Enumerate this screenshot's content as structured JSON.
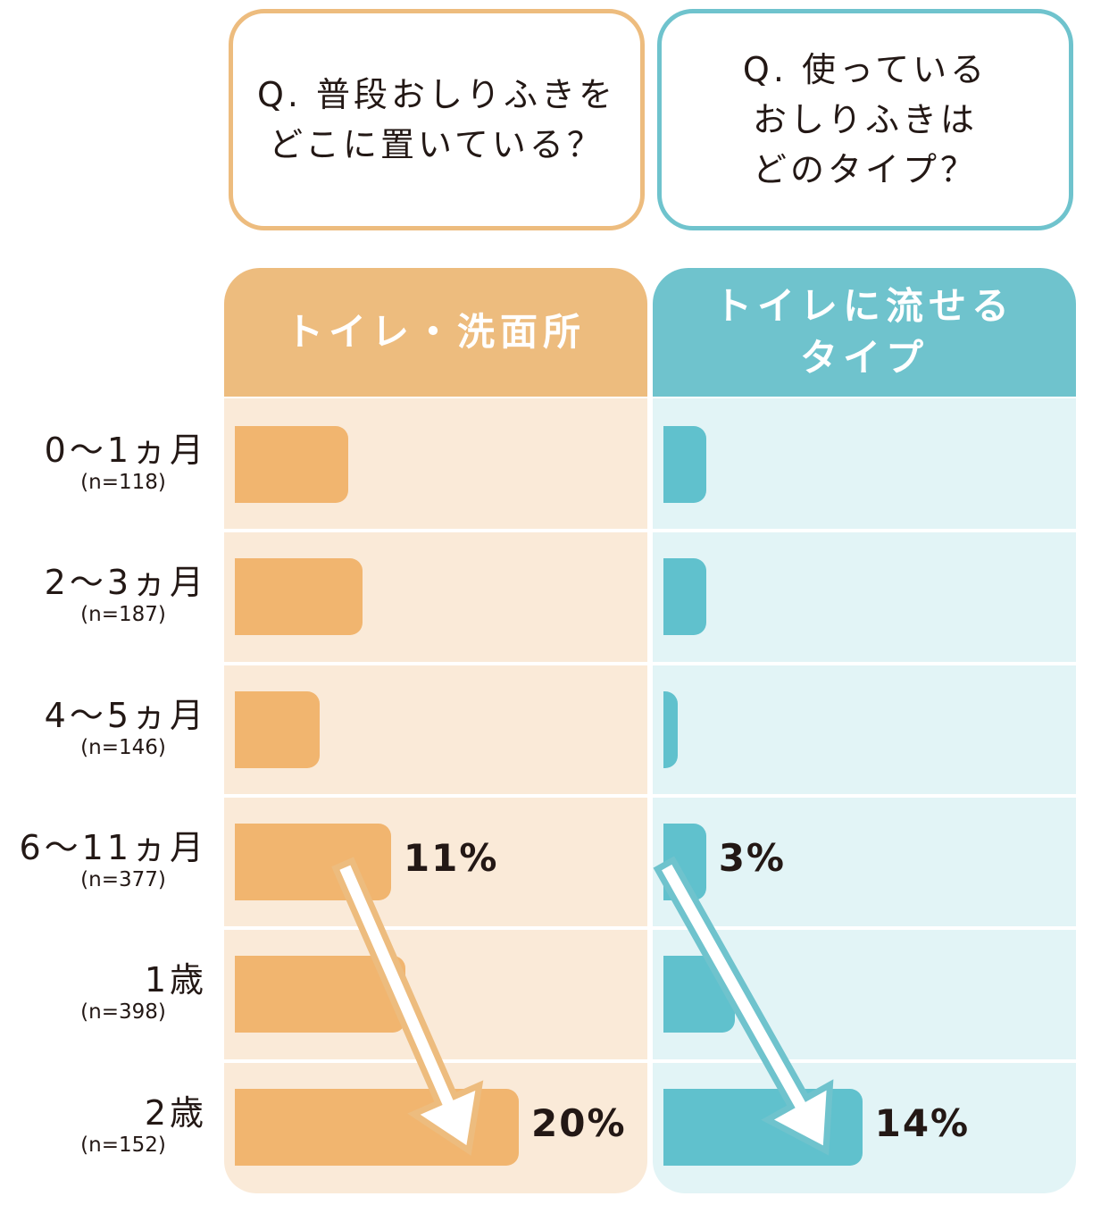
{
  "questions": {
    "q1": [
      "Q. 普段おしりふきを",
      "どこに置いている？"
    ],
    "q2": [
      "Q. 使っている",
      "おしりふきは",
      "どのタイプ？"
    ]
  },
  "headers": {
    "h1": [
      "トイレ・洗面所"
    ],
    "h2": [
      "トイレに流せる",
      "タイプ"
    ]
  },
  "colors": {
    "orange": "#F1B56F",
    "teal": "#60C1CD",
    "orange_border": "#EDBC7E",
    "teal_border": "#6FC3CD"
  },
  "chart_data": [
    {
      "type": "bar",
      "orientation": "horizontal",
      "title": "トイレ・洗面所",
      "categories": [
        "0～1ヵ月",
        "2～3ヵ月",
        "4～5ヵ月",
        "6～11ヵ月",
        "1歳",
        "2歳"
      ],
      "sample_sizes": [
        "(n=118)",
        "(n=187)",
        "(n=146)",
        "(n=377)",
        "(n=398)",
        "(n=152)"
      ],
      "values": [
        8,
        9,
        6,
        11,
        12,
        20
      ],
      "labels": [
        "",
        "",
        "",
        "11%",
        "",
        "20%"
      ],
      "xlim": [
        0,
        24
      ],
      "trend_arrow": "6～11ヵ月 → 2歳"
    },
    {
      "type": "bar",
      "orientation": "horizontal",
      "title": "トイレに流せるタイプ",
      "categories": [
        "0～1ヵ月",
        "2～3ヵ月",
        "4～5ヵ月",
        "6～11ヵ月",
        "1歳",
        "2歳"
      ],
      "sample_sizes": [
        "(n=118)",
        "(n=187)",
        "(n=146)",
        "(n=377)",
        "(n=398)",
        "(n=152)"
      ],
      "values": [
        3,
        3,
        1,
        3,
        5,
        14
      ],
      "labels": [
        "",
        "",
        "",
        "3%",
        "",
        "14%"
      ],
      "xlim": [
        0,
        24
      ],
      "trend_arrow": "6～11ヵ月 → 2歳"
    }
  ]
}
